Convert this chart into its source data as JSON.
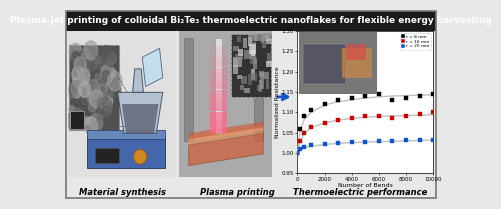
{
  "title": "Plasma-jet printing of colloidal Bi₂Te₃ thermoelectric nanoflakes for flexible energy harvesting",
  "title_fontsize": 6.5,
  "title_bg": "#1a1a1a",
  "title_color": "white",
  "border_color": "#777777",
  "bg_color": "#e8e8e8",
  "section_labels": [
    "Material synthesis",
    "Plasma printing",
    "Thermoelectric performance"
  ],
  "section_label_fontsize": 6.0,
  "plot_xlim": [
    0,
    10000
  ],
  "plot_ylim": [
    0.95,
    1.3
  ],
  "plot_yticks": [
    0.95,
    1.0,
    1.05,
    1.1,
    1.15,
    1.2,
    1.25,
    1.3
  ],
  "plot_xticks": [
    0,
    2000,
    4000,
    6000,
    8000,
    10000
  ],
  "plot_xlabel": "Number of Bends",
  "plot_ylabel": "Normalized Resistance",
  "plot_xlabel_fontsize": 4.5,
  "plot_ylabel_fontsize": 4.5,
  "plot_tick_fontsize": 4.0,
  "legend_labels": [
    "r = 8 mm",
    "r = 16 mm",
    "r = 25 mm"
  ],
  "legend_colors": [
    "black",
    "#cc0000",
    "#1155cc"
  ],
  "series_x": [
    0,
    200,
    500,
    1000,
    2000,
    3000,
    4000,
    5000,
    6000,
    7000,
    8000,
    9000,
    10000
  ],
  "series1_y": [
    1.0,
    1.06,
    1.09,
    1.105,
    1.12,
    1.13,
    1.135,
    1.14,
    1.145,
    1.13,
    1.135,
    1.14,
    1.145
  ],
  "series2_y": [
    1.0,
    1.03,
    1.05,
    1.065,
    1.075,
    1.082,
    1.086,
    1.09,
    1.09,
    1.085,
    1.09,
    1.095,
    1.1
  ],
  "series3_y": [
    1.0,
    1.01,
    1.015,
    1.02,
    1.023,
    1.025,
    1.027,
    1.028,
    1.03,
    1.03,
    1.031,
    1.032,
    1.033
  ],
  "fit1_y": [
    1.0,
    1.055,
    1.082,
    1.1,
    1.118,
    1.126,
    1.131,
    1.135,
    1.138,
    1.14,
    1.141,
    1.142,
    1.143
  ],
  "fit2_y": [
    1.0,
    1.028,
    1.048,
    1.062,
    1.074,
    1.081,
    1.085,
    1.088,
    1.09,
    1.091,
    1.092,
    1.093,
    1.094
  ],
  "fit3_y": [
    1.0,
    1.009,
    1.013,
    1.017,
    1.021,
    1.024,
    1.026,
    1.027,
    1.028,
    1.029,
    1.03,
    1.031,
    1.032
  ],
  "arrow_color": "#1155cc",
  "plot_bg": "white",
  "left_section_bg": "#e0e0e0",
  "mid_section_bg": "#c8c8c8",
  "hotplate_color": "#4466aa",
  "flask_color": "#aabbcc",
  "sem_bg": "#505050",
  "sem_border": "#888888",
  "plasma_photo_bg": "#909090",
  "plasma_tube_color": "#cccccc",
  "nanoflake_sem_bg": "#404040",
  "inset_photo_bg": "#888888"
}
